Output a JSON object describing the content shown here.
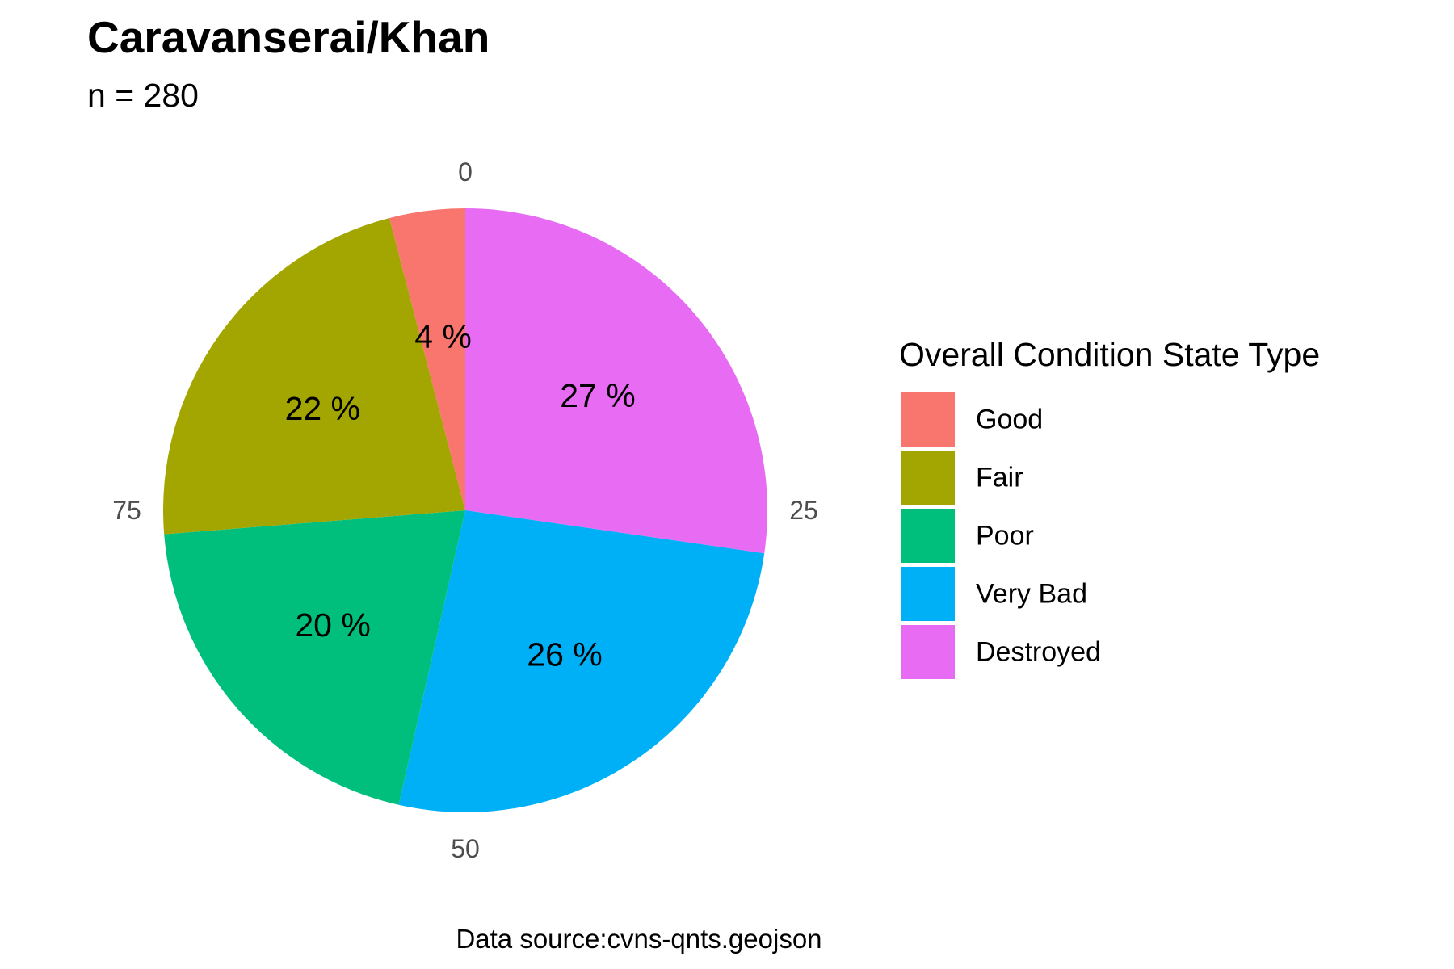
{
  "chart_data": {
    "type": "pie",
    "title": "Caravanserai/Khan",
    "subtitle": "n = 280",
    "caption": "Data source:cvns-qnts.geojson",
    "legend_title": "Overall Condition State Type",
    "legend_position": "right",
    "categories": [
      "Good",
      "Fair",
      "Poor",
      "Very Bad",
      "Destroyed"
    ],
    "values": [
      4,
      22,
      20,
      26,
      27
    ],
    "labels": [
      "4 %",
      "22 %",
      "20 %",
      "26 %",
      "27 %"
    ],
    "colors": [
      "#F8766D",
      "#A3A500",
      "#00BF7D",
      "#00B0F6",
      "#E76BF3"
    ],
    "start_category": "Destroyed",
    "direction": "clockwise",
    "axis_ticks": [
      "0",
      "25",
      "50",
      "75"
    ],
    "axis_range": [
      0,
      100
    ]
  }
}
